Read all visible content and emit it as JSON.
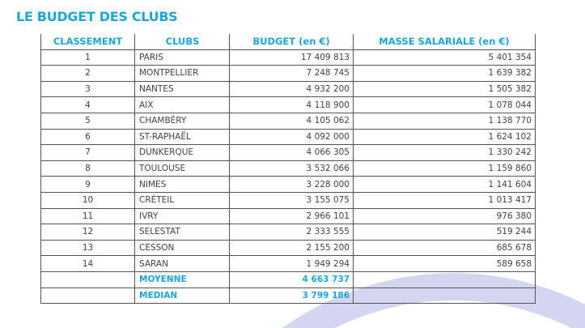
{
  "title": "LE BUDGET DES CLUBS",
  "colors": {
    "accent": "#1ea5d6",
    "arc": "#d3d6ee"
  },
  "table": {
    "headers": [
      "CLASSEMENT",
      "CLUBS",
      "BUDGET (en €)",
      "MASSE SALARIALE (en €)"
    ],
    "rows": [
      [
        "1",
        "PARIS",
        "17 409 813",
        "5 401 354"
      ],
      [
        "2",
        "MONTPELLIER",
        "7 248 745",
        "1 639 382"
      ],
      [
        "3",
        "NANTES",
        "4 932 200",
        "1 505 382"
      ],
      [
        "4",
        "AIX",
        "4 118 900",
        "1 078 044"
      ],
      [
        "5",
        "CHAMBÉRY",
        "4 105 062",
        "1 138 770"
      ],
      [
        "6",
        "ST-RAPHAËL",
        "4 092 000",
        "1 624 102"
      ],
      [
        "7",
        "DUNKERQUE",
        "4 066 305",
        "1 330 242"
      ],
      [
        "8",
        "TOULOUSE",
        "3 532 066",
        "1 159 860"
      ],
      [
        "9",
        "NIMES",
        "3 228 000",
        "1 141 604"
      ],
      [
        "10",
        "CRÉTEIL",
        "3 155 075",
        "1 013 417"
      ],
      [
        "11",
        "IVRY",
        "2 966 101",
        "976 380"
      ],
      [
        "12",
        "SELESTAT",
        "2 333 555",
        "519 244"
      ],
      [
        "13",
        "CESSON",
        "2 155 200",
        "685 678"
      ],
      [
        "14",
        "SARAN",
        "1 949 294",
        "589 658"
      ]
    ],
    "summary": [
      {
        "label": "MOYENNE",
        "budget": "4 663 737"
      },
      {
        "label": "MEDIAN",
        "budget": "3 799 186"
      }
    ]
  }
}
